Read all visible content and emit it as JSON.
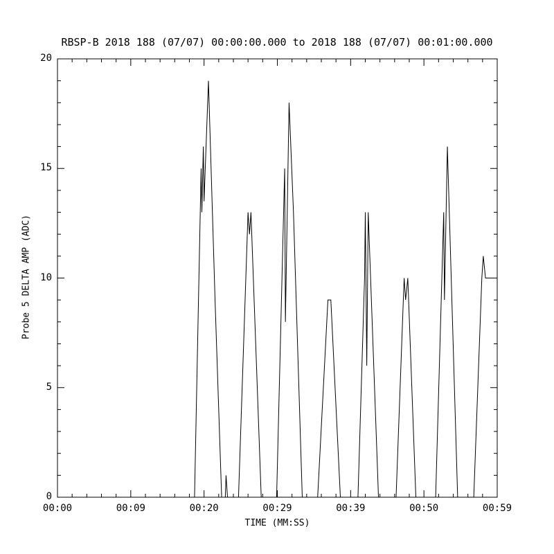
{
  "title": "RBSP-B 2018 188 (07/07) 00:00:00.000 to 2018 188 (07/07) 00:01:00.000",
  "chart_data": {
    "type": "line",
    "title": "RBSP-B 2018 188 (07/07) 00:00:00.000 to 2018 188 (07/07) 00:01:00.000",
    "xlabel": "TIME (MM:SS)",
    "ylabel": "Probe 5 DELTA AMP (ADC)",
    "xlim": [
      0,
      60
    ],
    "ylim": [
      0,
      20
    ],
    "x_tick_labels": [
      "00:00",
      "00:09",
      "00:20",
      "00:29",
      "00:39",
      "00:50",
      "00:59"
    ],
    "y_tick_labels": [
      "0",
      "5",
      "10",
      "15",
      "20"
    ],
    "y_ticks": [
      0,
      5,
      10,
      15,
      20
    ],
    "grid": "off",
    "legend": "none",
    "line_color": "#000000",
    "background_color": "#ffffff",
    "series_name": "Probe 5 DELTA AMP",
    "points": [
      [
        0.0,
        0
      ],
      [
        18.7,
        0
      ],
      [
        19.6,
        15
      ],
      [
        19.7,
        13
      ],
      [
        19.9,
        16
      ],
      [
        20.0,
        13.5
      ],
      [
        20.6,
        19
      ],
      [
        21.5,
        9
      ],
      [
        22.4,
        0
      ],
      [
        22.9,
        0
      ],
      [
        23.0,
        1
      ],
      [
        23.2,
        0
      ],
      [
        24.7,
        0
      ],
      [
        26.0,
        13
      ],
      [
        26.2,
        12
      ],
      [
        26.4,
        13
      ],
      [
        27.8,
        0
      ],
      [
        29.9,
        0
      ],
      [
        31.0,
        15
      ],
      [
        31.1,
        8
      ],
      [
        31.6,
        18
      ],
      [
        32.2,
        13
      ],
      [
        33.4,
        0
      ],
      [
        35.5,
        0
      ],
      [
        36.9,
        9
      ],
      [
        37.3,
        9
      ],
      [
        38.6,
        0
      ],
      [
        41.0,
        0
      ],
      [
        41.9,
        10
      ],
      [
        42.0,
        13
      ],
      [
        42.2,
        6
      ],
      [
        42.4,
        13
      ],
      [
        43.8,
        0
      ],
      [
        46.2,
        0
      ],
      [
        47.3,
        10
      ],
      [
        47.5,
        9
      ],
      [
        47.8,
        10
      ],
      [
        48.9,
        0
      ],
      [
        51.6,
        0
      ],
      [
        52.7,
        13
      ],
      [
        52.8,
        9
      ],
      [
        53.2,
        16
      ],
      [
        54.6,
        0
      ],
      [
        56.8,
        0
      ],
      [
        57.9,
        10
      ],
      [
        58.1,
        11
      ],
      [
        58.4,
        10
      ],
      [
        60.0,
        10
      ]
    ]
  }
}
